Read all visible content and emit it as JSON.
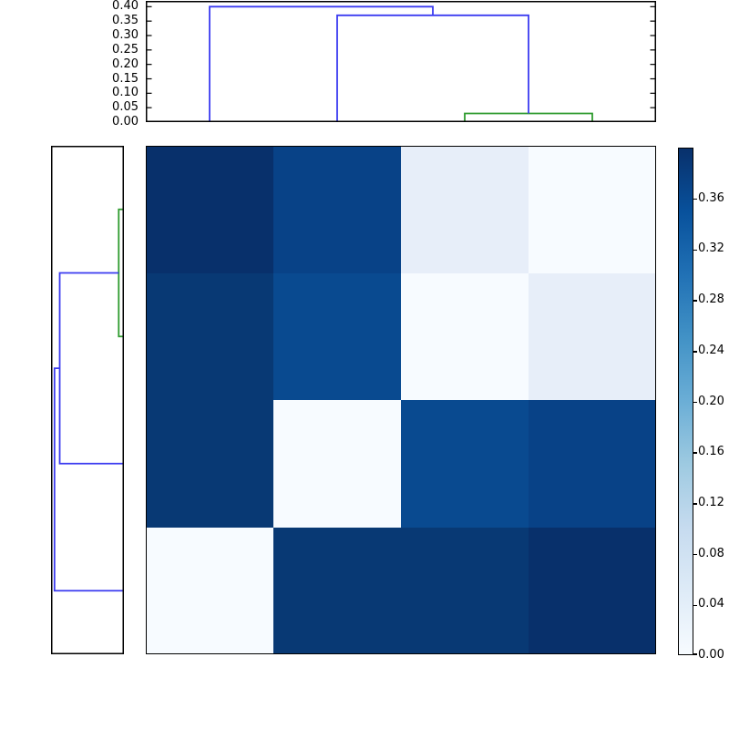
{
  "page": {
    "background": "#ffffff",
    "description": "Hierarchical clustering figure: top dendrogram, left dendrogram, 4x4 distance-matrix heatmap (Blues colormap) and vertical colorbar"
  },
  "colors": {
    "frame": "#000000",
    "tick_label": "#000000",
    "link_blue": "#3b3bf0",
    "link_green": "#2e9b2e",
    "figure_background": "#ffffff"
  },
  "chart_data": {
    "type": "heatmap",
    "title": "",
    "colormap": "Blues",
    "vmin": 0.0,
    "vmax": 0.4,
    "grid": "off",
    "heatmap": {
      "n_rows": 4,
      "n_cols": 4,
      "values": [
        [
          0.4,
          0.37,
          0.03,
          0.0
        ],
        [
          0.39,
          0.36,
          0.0,
          0.03
        ],
        [
          0.39,
          0.0,
          0.36,
          0.37
        ],
        [
          0.0,
          0.39,
          0.39,
          0.4
        ]
      ],
      "cell_colors": [
        [
          "#08306b",
          "#084287",
          "#e7eef9",
          "#f7fbff"
        ],
        [
          "#083974",
          "#094a90",
          "#f7fbff",
          "#e7eef9"
        ],
        [
          "#083974",
          "#f7fbff",
          "#094a90",
          "#084287"
        ],
        [
          "#f7fbff",
          "#083974",
          "#083974",
          "#08306b"
        ]
      ]
    },
    "top_dendrogram": {
      "orientation": "top",
      "axis_lim": [
        0.0,
        0.42
      ],
      "tick_values": [
        0.4,
        0.35,
        0.3,
        0.25,
        0.2,
        0.15,
        0.1,
        0.05,
        0.0
      ],
      "tick_labels": [
        "0.40",
        "0.35",
        "0.30",
        "0.25",
        "0.20",
        "0.15",
        "0.10",
        "0.05",
        "0.00"
      ],
      "leaf_positions": [
        0.5,
        1.5,
        2.5,
        3.5
      ],
      "links": [
        {
          "a_pos": 2.5,
          "a_base": 0.0,
          "b_pos": 3.5,
          "b_base": 0.0,
          "height": 0.03,
          "color": "#2e9b2e"
        },
        {
          "a_pos": 1.5,
          "a_base": 0.0,
          "b_pos": 3.0,
          "b_base": 0.03,
          "height": 0.37,
          "color": "#3b3bf0"
        },
        {
          "a_pos": 0.5,
          "a_base": 0.0,
          "b_pos": 2.25,
          "b_base": 0.37,
          "height": 0.4,
          "color": "#3b3bf0"
        }
      ]
    },
    "left_dendrogram": {
      "orientation": "left",
      "axis_lim": [
        0.0,
        0.42
      ],
      "tick_values": [],
      "tick_labels": [],
      "leaf_positions": [
        0.5,
        1.5,
        2.5,
        3.5
      ],
      "links": [
        {
          "a_pos": 0.5,
          "a_base": 0.0,
          "b_pos": 1.5,
          "b_base": 0.0,
          "height": 0.03,
          "color": "#2e9b2e"
        },
        {
          "a_pos": 2.5,
          "a_base": 0.0,
          "b_pos": 1.0,
          "b_base": 0.03,
          "height": 0.37,
          "color": "#3b3bf0"
        },
        {
          "a_pos": 3.5,
          "a_base": 0.0,
          "b_pos": 1.75,
          "b_base": 0.37,
          "height": 0.4,
          "color": "#3b3bf0"
        }
      ]
    },
    "colorbar": {
      "range": [
        0.0,
        0.4
      ],
      "tick_values": [
        0.36,
        0.32,
        0.28,
        0.24,
        0.2,
        0.16,
        0.12,
        0.08,
        0.04,
        0.0
      ],
      "tick_labels": [
        "0.36",
        "0.32",
        "0.28",
        "0.24",
        "0.20",
        "0.16",
        "0.12",
        "0.08",
        "0.04",
        "0.00"
      ],
      "gradient_stops": [
        {
          "value": 0.4,
          "color": "#08306b"
        },
        {
          "value": 0.35,
          "color": "#08519c"
        },
        {
          "value": 0.3,
          "color": "#2171b5"
        },
        {
          "value": 0.25,
          "color": "#4292c6"
        },
        {
          "value": 0.2,
          "color": "#6baed6"
        },
        {
          "value": 0.15,
          "color": "#9ecae1"
        },
        {
          "value": 0.1,
          "color": "#c6dbef"
        },
        {
          "value": 0.05,
          "color": "#deebf7"
        },
        {
          "value": 0.0,
          "color": "#f7fbff"
        }
      ]
    }
  }
}
